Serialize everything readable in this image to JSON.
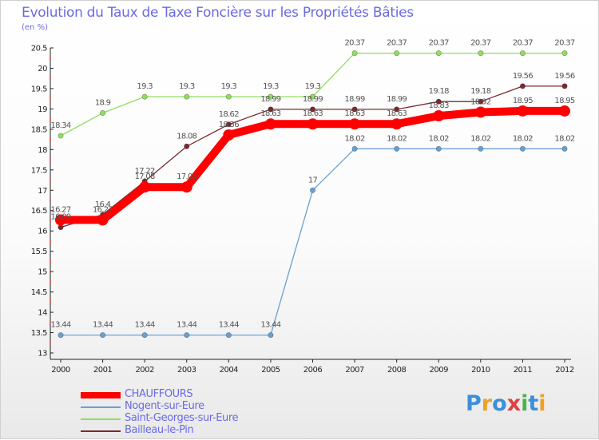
{
  "header": {
    "title": "Evolution du Taux de Taxe Foncière sur les Propriétés Bâties",
    "unit": "(en %)"
  },
  "logo": {
    "text": "Proxiti"
  },
  "chart_data": {
    "type": "line",
    "title": "Evolution du Taux de Taxe Foncière sur les Propriétés Bâties",
    "ylabel": "(en %)",
    "xlabel": "",
    "x": [
      2000,
      2001,
      2002,
      2003,
      2004,
      2005,
      2006,
      2007,
      2008,
      2009,
      2010,
      2011,
      2012
    ],
    "ylim": [
      13,
      20.5
    ],
    "yticks": [
      13,
      13.5,
      14,
      14.5,
      15,
      15.5,
      16,
      16.5,
      17,
      17.5,
      18,
      18.5,
      19,
      19.5,
      20,
      20.5
    ],
    "grid": false,
    "legend_position": "bottom-left",
    "series": [
      {
        "name": "CHAUFFOURS",
        "color": "#ff0000",
        "values": [
          16.27,
          16.27,
          17.08,
          17.08,
          18.36,
          18.63,
          18.63,
          18.63,
          18.63,
          18.83,
          18.92,
          18.95,
          18.95
        ],
        "labels": [
          "16.27",
          "16.27",
          "17.08",
          "17.08",
          "18.36",
          "18.63",
          "18.63",
          "18.63",
          "18.63",
          "18.83",
          "18.92",
          "18.95",
          "18.95"
        ]
      },
      {
        "name": "Nogent-sur-Eure",
        "color": "#6aa0d0",
        "values": [
          13.44,
          13.44,
          13.44,
          13.44,
          13.44,
          13.44,
          17,
          18.02,
          18.02,
          18.02,
          18.02,
          18.02,
          18.02
        ],
        "labels": [
          "13.44",
          "13.44",
          "13.44",
          "13.44",
          "13.44",
          "13.44",
          "17",
          "18.02",
          "18.02",
          "18.02",
          "18.02",
          "18.02",
          "18.02"
        ]
      },
      {
        "name": "Saint-Georges-sur-Eure",
        "color": "#90dd60",
        "values": [
          18.34,
          18.9,
          19.3,
          19.3,
          19.3,
          19.3,
          19.3,
          20.37,
          20.37,
          20.37,
          20.37,
          20.37,
          20.37
        ],
        "labels": [
          "18.34",
          "18.9",
          "19.3",
          "19.3",
          "19.3",
          "19.3",
          "19.3",
          "20.37",
          "20.37",
          "20.37",
          "20.37",
          "20.37",
          "20.37"
        ]
      },
      {
        "name": "Bailleau-le-Pin",
        "color": "#7a2a30",
        "values": [
          16.09,
          16.4,
          17.22,
          18.08,
          18.62,
          18.99,
          18.99,
          18.99,
          18.99,
          19.18,
          19.18,
          19.56,
          19.56
        ],
        "labels": [
          "16.09",
          "16.4",
          "17.22",
          "18.08",
          "18.62",
          "18.99",
          "18.99",
          "18.99",
          "18.99",
          "19.18",
          "19.18",
          "19.56",
          "19.56"
        ]
      }
    ]
  }
}
